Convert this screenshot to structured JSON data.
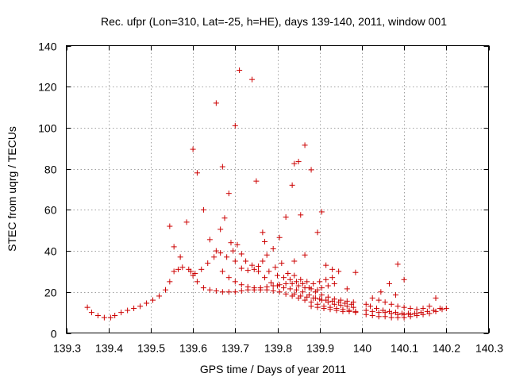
{
  "chart_data": {
    "type": "scatter",
    "title": "Rec. ufpr (Lon=310, Lat=-25, h=HE), days 139-140, 2011, window 001",
    "xlabel": "GPS time / Days of year 2011",
    "ylabel": "STEC from uqrg / TECUs",
    "xlim": [
      139.3,
      140.3
    ],
    "ylim": [
      0,
      140
    ],
    "xticks": [
      139.3,
      139.4,
      139.5,
      139.6,
      139.7,
      139.8,
      139.9,
      140,
      140.1,
      140.2,
      140.3
    ],
    "xtick_labels": [
      "139.3",
      "139.4",
      "139.5",
      "139.6",
      "139.7",
      "139.8",
      "139.9",
      "140",
      "140.1",
      "140.2",
      "140.3"
    ],
    "yticks": [
      0,
      20,
      40,
      60,
      80,
      100,
      120,
      140
    ],
    "ytick_labels": [
      "0",
      "20",
      "40",
      "60",
      "80",
      "100",
      "120",
      "140"
    ],
    "grid": true,
    "marker": "plus",
    "color": "#cc0000",
    "series": [
      {
        "name": "STEC",
        "points": [
          [
            139.35,
            12.5
          ],
          [
            139.36,
            10
          ],
          [
            139.375,
            8.5
          ],
          [
            139.39,
            7.5
          ],
          [
            139.405,
            7.5
          ],
          [
            139.415,
            8.5
          ],
          [
            139.43,
            10
          ],
          [
            139.445,
            11
          ],
          [
            139.46,
            12
          ],
          [
            139.475,
            13
          ],
          [
            139.49,
            14.5
          ],
          [
            139.505,
            16
          ],
          [
            139.52,
            18
          ],
          [
            139.535,
            21
          ],
          [
            139.545,
            25
          ],
          [
            139.555,
            30
          ],
          [
            139.565,
            31
          ],
          [
            139.575,
            32
          ],
          [
            139.59,
            31
          ],
          [
            139.6,
            28
          ],
          [
            139.61,
            25
          ],
          [
            139.625,
            22
          ],
          [
            139.64,
            21
          ],
          [
            139.655,
            20.5
          ],
          [
            139.67,
            20
          ],
          [
            139.685,
            20
          ],
          [
            139.7,
            20
          ],
          [
            139.715,
            20.5
          ],
          [
            139.73,
            21
          ],
          [
            139.745,
            21
          ],
          [
            139.76,
            21
          ],
          [
            139.775,
            21
          ],
          [
            139.79,
            20.5
          ],
          [
            139.805,
            20
          ],
          [
            139.82,
            19
          ],
          [
            139.835,
            18
          ],
          [
            139.85,
            17
          ],
          [
            139.865,
            16
          ],
          [
            139.88,
            15
          ],
          [
            139.895,
            14
          ],
          [
            139.91,
            13
          ],
          [
            139.925,
            12.5
          ],
          [
            139.94,
            12
          ],
          [
            139.955,
            11.5
          ],
          [
            139.97,
            11
          ],
          [
            139.985,
            10.5
          ],
          [
            139.545,
            52
          ],
          [
            139.555,
            42
          ],
          [
            139.57,
            37
          ],
          [
            139.585,
            54
          ],
          [
            139.6,
            89.5
          ],
          [
            139.61,
            78
          ],
          [
            139.625,
            60
          ],
          [
            139.64,
            45.5
          ],
          [
            139.655,
            40
          ],
          [
            139.665,
            50.5
          ],
          [
            139.675,
            56
          ],
          [
            139.685,
            68
          ],
          [
            139.69,
            44
          ],
          [
            139.7,
            35
          ],
          [
            139.715,
            31.5
          ],
          [
            139.73,
            30.5
          ],
          [
            139.745,
            31
          ],
          [
            139.755,
            32.5
          ],
          [
            139.765,
            35
          ],
          [
            139.775,
            38
          ],
          [
            139.79,
            41
          ],
          [
            139.805,
            46.5
          ],
          [
            139.82,
            56.5
          ],
          [
            139.835,
            72
          ],
          [
            139.84,
            82.5
          ],
          [
            139.85,
            83.5
          ],
          [
            139.865,
            91.5
          ],
          [
            139.88,
            79.5
          ],
          [
            139.895,
            49
          ],
          [
            139.905,
            59
          ],
          [
            139.915,
            33
          ],
          [
            139.93,
            31
          ],
          [
            139.945,
            30
          ],
          [
            139.965,
            21.5
          ],
          [
            139.985,
            29.5
          ],
          [
            139.595,
            30
          ],
          [
            139.605,
            29
          ],
          [
            139.62,
            31
          ],
          [
            139.635,
            34
          ],
          [
            139.65,
            37
          ],
          [
            139.665,
            39
          ],
          [
            139.68,
            37
          ],
          [
            139.695,
            40
          ],
          [
            139.705,
            43
          ],
          [
            139.715,
            38.5
          ],
          [
            139.725,
            35
          ],
          [
            139.74,
            33
          ],
          [
            139.755,
            30
          ],
          [
            139.77,
            27
          ],
          [
            139.785,
            24.5
          ],
          [
            139.8,
            23
          ],
          [
            139.815,
            22
          ],
          [
            139.83,
            21.5
          ],
          [
            139.845,
            21
          ],
          [
            139.86,
            20
          ],
          [
            139.875,
            18.5
          ],
          [
            139.89,
            17
          ],
          [
            139.905,
            16
          ],
          [
            139.92,
            15
          ],
          [
            139.935,
            14
          ],
          [
            139.95,
            13.5
          ],
          [
            139.965,
            13
          ],
          [
            139.98,
            12.5
          ],
          [
            139.655,
            112
          ],
          [
            139.67,
            81
          ],
          [
            139.7,
            101
          ],
          [
            139.71,
            128
          ],
          [
            139.74,
            123.5
          ],
          [
            139.75,
            74
          ],
          [
            139.765,
            49
          ],
          [
            139.77,
            44.5
          ],
          [
            139.67,
            30
          ],
          [
            139.685,
            27
          ],
          [
            139.7,
            25
          ],
          [
            139.715,
            23.5
          ],
          [
            139.73,
            22.5
          ],
          [
            139.745,
            22
          ],
          [
            139.76,
            22
          ],
          [
            139.775,
            22.5
          ],
          [
            139.79,
            23
          ],
          [
            139.805,
            23.5
          ],
          [
            139.82,
            24
          ],
          [
            139.835,
            24
          ],
          [
            139.85,
            23
          ],
          [
            139.865,
            22
          ],
          [
            139.88,
            21.5
          ],
          [
            139.895,
            21
          ],
          [
            139.905,
            22
          ],
          [
            139.92,
            23
          ],
          [
            139.935,
            24
          ],
          [
            139.78,
            30
          ],
          [
            139.795,
            32
          ],
          [
            139.81,
            34
          ],
          [
            139.825,
            29
          ],
          [
            139.84,
            28
          ],
          [
            139.855,
            26
          ],
          [
            139.87,
            25
          ],
          [
            139.885,
            24
          ],
          [
            139.9,
            25
          ],
          [
            139.915,
            26
          ],
          [
            139.93,
            27
          ],
          [
            139.84,
            35
          ],
          [
            139.855,
            57.5
          ],
          [
            139.865,
            38
          ],
          [
            139.8,
            28
          ],
          [
            139.815,
            27
          ],
          [
            139.83,
            26
          ],
          [
            139.845,
            25
          ],
          [
            139.86,
            24
          ],
          [
            139.875,
            22
          ],
          [
            139.89,
            20
          ],
          [
            139.905,
            18.5
          ],
          [
            139.92,
            17.5
          ],
          [
            139.935,
            16.5
          ],
          [
            139.95,
            16
          ],
          [
            139.965,
            15.5
          ],
          [
            139.98,
            15
          ],
          [
            139.84,
            19
          ],
          [
            139.855,
            18
          ],
          [
            139.87,
            17.5
          ],
          [
            139.885,
            17
          ],
          [
            139.9,
            16.5
          ],
          [
            139.915,
            16
          ],
          [
            139.93,
            15.5
          ],
          [
            139.945,
            15
          ],
          [
            139.96,
            14.5
          ],
          [
            139.975,
            14
          ],
          [
            139.88,
            13
          ],
          [
            139.895,
            12.5
          ],
          [
            139.91,
            12
          ],
          [
            139.925,
            11.5
          ],
          [
            139.94,
            11
          ],
          [
            139.955,
            10.5
          ],
          [
            139.97,
            10.5
          ],
          [
            139.985,
            10
          ],
          [
            140.01,
            14
          ],
          [
            140.02,
            13
          ],
          [
            140.035,
            12
          ],
          [
            140.05,
            11
          ],
          [
            140.065,
            10.5
          ],
          [
            140.08,
            10
          ],
          [
            140.095,
            9.5
          ],
          [
            140.11,
            9.5
          ],
          [
            140.125,
            9.5
          ],
          [
            140.14,
            10
          ],
          [
            140.155,
            10.5
          ],
          [
            140.17,
            11
          ],
          [
            140.185,
            12
          ],
          [
            140.2,
            12
          ],
          [
            140.01,
            9
          ],
          [
            140.025,
            8.5
          ],
          [
            140.04,
            8
          ],
          [
            140.055,
            8
          ],
          [
            140.07,
            7.5
          ],
          [
            140.085,
            7.5
          ],
          [
            140.1,
            7.5
          ],
          [
            140.115,
            8
          ],
          [
            140.13,
            8.5
          ],
          [
            140.145,
            9
          ],
          [
            140.16,
            9.5
          ],
          [
            140.175,
            10.5
          ],
          [
            140.19,
            11.5
          ],
          [
            140.025,
            17
          ],
          [
            140.04,
            16
          ],
          [
            140.055,
            15
          ],
          [
            140.07,
            14
          ],
          [
            140.085,
            13
          ],
          [
            140.1,
            12.5
          ],
          [
            140.115,
            12
          ],
          [
            140.13,
            11.5
          ],
          [
            140.145,
            12
          ],
          [
            140.16,
            13
          ],
          [
            140.01,
            11
          ],
          [
            140.025,
            10.5
          ],
          [
            140.04,
            10
          ],
          [
            140.055,
            10
          ],
          [
            140.07,
            9.5
          ],
          [
            140.085,
            9
          ],
          [
            140.1,
            9
          ],
          [
            140.115,
            9
          ],
          [
            140.13,
            9.5
          ],
          [
            140.045,
            20
          ],
          [
            140.065,
            24
          ],
          [
            140.085,
            33.5
          ],
          [
            140.1,
            26
          ],
          [
            140.08,
            18.5
          ],
          [
            140.175,
            17
          ]
        ]
      }
    ]
  }
}
